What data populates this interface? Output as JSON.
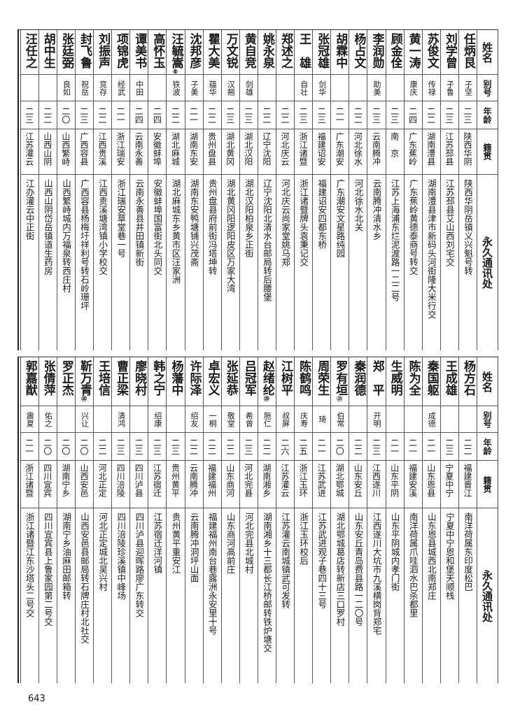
{
  "headers": {
    "name": "姓名",
    "alias": "别号",
    "age": "年龄",
    "origin": "籍贯",
    "address": "永久通讯处"
  },
  "top_rows": [
    {
      "name": "任炳艮",
      "alias": "子坚",
      "age": "二三",
      "origin": "陕西华阴",
      "address": "陕西华阴岳镇义兴魁号转"
    },
    {
      "name": "刘学曾",
      "alias": "子鲁",
      "age": "二三",
      "origin": "江苏邳县",
      "address": "江苏邳县艾山西刘宅交"
    },
    {
      "name": "苏俊文",
      "alias": "传禄",
      "age": "二二",
      "origin": "湖南澧县",
      "address": "湖南澧县津市新码头河街隆大米行交"
    },
    {
      "name": "黄一涛",
      "alias": "康庆",
      "age": "二四",
      "origin": "广东蕉岭",
      "address": "广东蕉岭黄德泰商号转交"
    },
    {
      "name": "顾金佺",
      "alias": "",
      "age": "二三",
      "origin": "南　京",
      "address": "江苏上海浦东烂泥渡路一二二号"
    },
    {
      "name": "李润勋",
      "alias": "助美",
      "age": "二三",
      "origin": "云南腾冲",
      "address": "云南腾冲清水乡"
    },
    {
      "name": "杨占文",
      "alias": "",
      "age": "二二",
      "origin": "河北徐水",
      "address": "河北徐水北关"
    },
    {
      "name": "胡霖中",
      "alias": "",
      "age": "二一",
      "origin": "广东潮安",
      "address": "广东潮安文星路纯园"
    },
    {
      "name": "张冠雄",
      "alias": "剑华",
      "age": "二三",
      "origin": "福建诏安",
      "address": "福建诏安四都东桥"
    },
    {
      "name": "王　雄",
      "alias": "自壮",
      "age": "二三",
      "origin": "浙江诸暨",
      "address": "浙江诸暨牌头袁秉记交"
    },
    {
      "name": "郑述之",
      "alias": "",
      "age": "二二",
      "origin": "河北庆云",
      "address": "河北庆云尚家堂姚马郑"
    },
    {
      "name": "姚永泉",
      "alias": "",
      "age": "二二",
      "origin": "辽宁沈阳",
      "address": "辽宁沈阳北清水台邮局转后腰堡"
    },
    {
      "name": "黄自竞",
      "alias": "剑雄",
      "age": "二三",
      "origin": "湖北汉阳",
      "address": "湖北汉阳柏泉乡正街"
    },
    {
      "name": "万文锐",
      "alias": "汉翘",
      "age": "二三",
      "origin": "湖北黄冈",
      "address": "湖北黄冈阳逻阳皮区万家大湾"
    },
    {
      "name": "瞿大美",
      "alias": "蕴华",
      "age": "二二",
      "origin": "贵州盘县",
      "address": "贵州盘县府前街冯塔坤转"
    },
    {
      "name": "沈邦彦",
      "alias": "子美",
      "age": "二一",
      "origin": "湖南东安",
      "address": "湖南东安鸭塘铺兴茂斋"
    },
    {
      "name": "汪毓嵩",
      "mark": "⑧",
      "alias": "铁波",
      "age": "二二",
      "origin": "湖北麻城",
      "address": "湖北麻城东乡黄市区汪家洲"
    },
    {
      "name": "高怀玉",
      "alias": "",
      "age": "二四",
      "origin": "安徽蚌埠",
      "address": "安徽蚌埠国富街北头同交"
    },
    {
      "name": "谭美书",
      "alias": "中田",
      "age": "二四",
      "origin": "云南永善",
      "address": "云南永善县井田镇新街"
    },
    {
      "name": "项锦虎",
      "alias": "经武",
      "age": "二一",
      "origin": "浙江瑞安",
      "address": "浙江瑞安草堂巷一号"
    },
    {
      "name": "刘振声",
      "alias": "竞存",
      "age": "二二",
      "origin": "江西贵溪",
      "address": "江西贵溪塘湾镇小学校交"
    },
    {
      "name": "封飞鲁",
      "alias": "祝岳",
      "age": "二三",
      "origin": "广西容县",
      "address": "广西容县杨梅圩祥利号转石岭珊坪"
    },
    {
      "name": "张廷弼",
      "alias": "良如",
      "age": "二〇",
      "origin": "山西繁峙",
      "address": "山西繁峙城内万福泉转西庄村"
    },
    {
      "name": "胡中生",
      "alias": "",
      "age": "二二",
      "origin": "山西山阴",
      "address": "山西山阴岱岳镇道生药房"
    },
    {
      "name": "汪任之",
      "alias": "",
      "age": "二三",
      "origin": "江苏灌云",
      "address": "江办灌云中正街"
    }
  ],
  "bottom_rows": [
    {
      "name": "杨方石",
      "alias": "",
      "age": "二二",
      "origin": "福建晋江",
      "address": "南洋荷属东印度松巴"
    },
    {
      "name": "王成雄",
      "alias": "",
      "age": "二三",
      "origin": "宁夏中宁",
      "address": "宁夏中宁恩和堡天顺栈"
    },
    {
      "name": "秦国躯",
      "alias": "成德",
      "age": "二一",
      "origin": "山东恩县",
      "address": "山东恩县城西北南郑庄"
    },
    {
      "name": "陈为全",
      "alias": "",
      "age": "二一",
      "origin": "福建安溪",
      "address": "南洋荷属爪哇泗水巴杀都里"
    },
    {
      "name": "生威明",
      "alias": "",
      "age": "二一",
      "origin": "山东平阴",
      "address": "山东平阴城内孝门街"
    },
    {
      "name": "郑　平",
      "alias": "开明",
      "age": "二三",
      "origin": "江西遂川",
      "address": "江西遂川大坑市九溪横岗背郑宅"
    },
    {
      "name": "秦润德",
      "alias": "",
      "age": "二二",
      "origin": "山东安丘",
      "address": "山东安丘青岛费县路一二〇号"
    },
    {
      "name": "罗有垣",
      "mark": "㉛",
      "alias": "伯常",
      "age": "二〇",
      "origin": "湖北鄂城",
      "address": "湖北鄂城葛店转新店三口罗村"
    },
    {
      "name": "周荣生",
      "alias": "琦",
      "age": "二一",
      "origin": "江苏武进",
      "address": "江苏武进观子巷四十三号"
    },
    {
      "name": "陈鹤鸣",
      "alias": "庆寿",
      "age": "二五",
      "origin": "浙江玉环",
      "address": "浙江玉环校后"
    },
    {
      "name": "江树平",
      "alias": "叔屏",
      "age": "二六",
      "origin": "江苏灌云",
      "address": "江苏灌云南城镇武可发转"
    },
    {
      "name": "赵绪纶",
      "mark": "㉙",
      "alias": "胣仁",
      "age": "二二",
      "origin": "湖南湘乡",
      "address": "湖南湘乡十三都长江桥邮转铁炉塘交"
    },
    {
      "name": "吕冠军",
      "alias": "希曾",
      "age": "二三",
      "origin": "河北完县",
      "address": "河北完县北城村"
    },
    {
      "name": "张延恭",
      "alias": "敬堂",
      "age": "二二",
      "origin": "山东商河",
      "address": "山东商河高前庄"
    },
    {
      "name": "卓宏义",
      "alias": "一桐",
      "age": "二二",
      "origin": "福建福州",
      "address": "福建福州南台巷露洲永安里十号"
    },
    {
      "name": "许际泽",
      "alias": "绍友",
      "age": "二二",
      "origin": "云南腾冲",
      "address": "云南腾冲洞坪山面"
    },
    {
      "name": "杨藩中",
      "alias": "",
      "age": "二三",
      "origin": "贵州黄平",
      "address": "贵州黄平重安江"
    },
    {
      "name": "韩之宁",
      "alias": "绍康",
      "age": "二三",
      "origin": "江苏宿迁",
      "address": "江苏宿迁洋河镇"
    },
    {
      "name": "廖晓村",
      "alias": "",
      "age": "二三",
      "origin": "四川泸县",
      "address": "四川泸县迎晖路廖广东转交"
    },
    {
      "name": "曹正梁",
      "alias": "清鸿",
      "age": "二三",
      "origin": "四川涪陵",
      "address": "四川涪陵珍溪镇中峰场"
    },
    {
      "name": "王培信",
      "alias": "",
      "age": "二二",
      "origin": "河北正定",
      "address": "河北正定城北吴兴村"
    },
    {
      "name": "靳万青",
      "mark": "㉚",
      "alias": "兴让",
      "age": "二〇",
      "origin": "山西安邑",
      "address": "山西安邑县邮局转石牌庄村北社交"
    },
    {
      "name": "罗正杰",
      "alias": "",
      "age": "二〇",
      "origin": "湖南宁乡",
      "address": "湖南宁乡油麻田邮箱转"
    },
    {
      "name": "张倩萍",
      "alias": "佑之",
      "age": "二〇",
      "origin": "四川宜宾",
      "address": "四川宜宾县上鲁家园第二号交"
    },
    {
      "name": "郭嘉猷",
      "alias": "震夏",
      "age": "二一",
      "origin": "浙江诸暨",
      "address": "浙江诸暨江东沙塔头二号交"
    }
  ],
  "page_number": "643"
}
